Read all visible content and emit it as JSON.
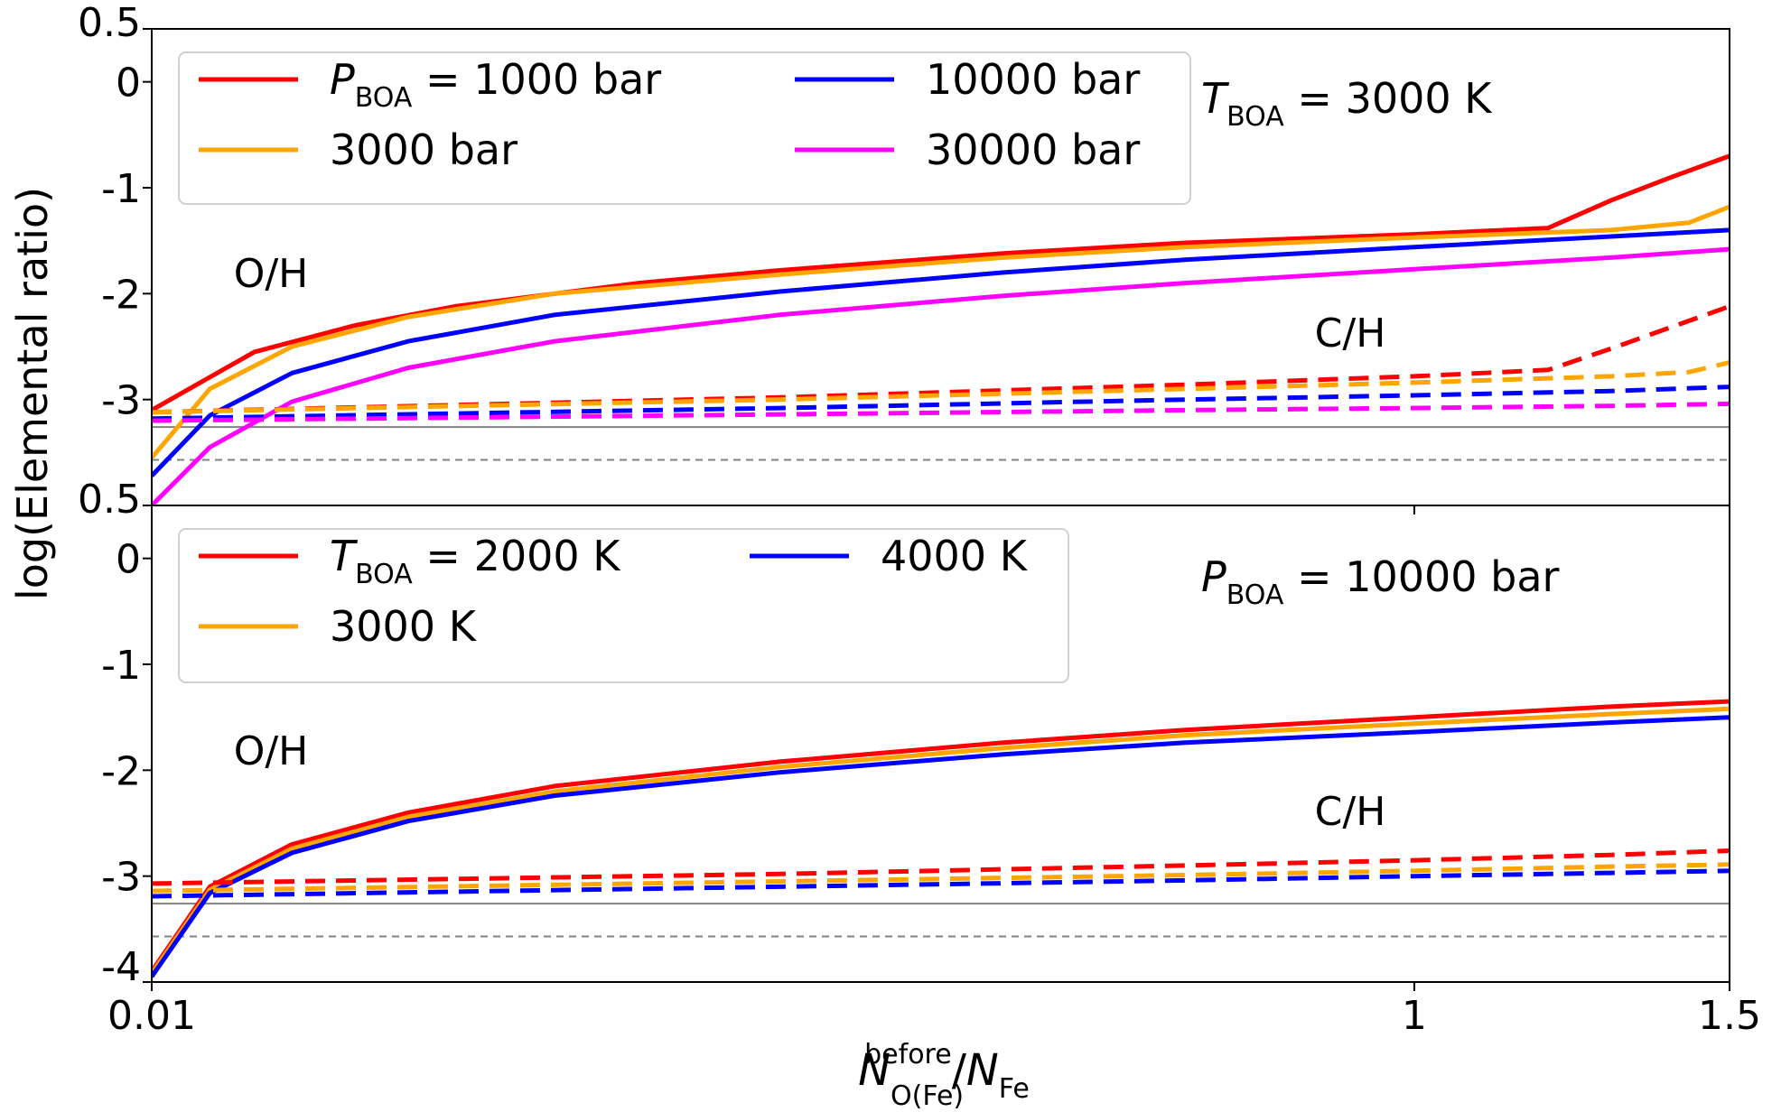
{
  "chart_data": [
    {
      "type": "line",
      "panel": "top",
      "title": "",
      "xlabel": "",
      "ylabel": "log(Elemental ratio)",
      "xscale": "sqrt",
      "xlim": [
        0.01,
        1.5
      ],
      "ylim": [
        -4,
        0.5
      ],
      "xticks": [
        {
          "v": 0.01,
          "label": "0.01"
        },
        {
          "v": 1,
          "label": "1"
        },
        {
          "v": 1.5,
          "label": "1.5"
        }
      ],
      "yticks": [
        {
          "v": 0.5,
          "label": "0.5"
        },
        {
          "v": 0,
          "label": "0"
        },
        {
          "v": -1,
          "label": "-1"
        },
        {
          "v": -2,
          "label": "-2"
        },
        {
          "v": -3,
          "label": "-3"
        }
      ],
      "condition": {
        "italic": "T",
        "sub": "BOA",
        "rest": " = 3000 K"
      },
      "label_OH": "O/H",
      "label_CH": "C/H",
      "reference_lines": {
        "solid": -3.26,
        "dashed": -3.57
      },
      "legend": [
        {
          "italic": "P",
          "sub": "BOA",
          "rest": " = 1000 bar",
          "color": "#ff0000"
        },
        {
          "italic": "",
          "sub": "",
          "rest": "3000 bar",
          "color": "#ffa500"
        },
        {
          "italic": "",
          "sub": "",
          "rest": "10000 bar",
          "color": "#0000ff"
        },
        {
          "italic": "",
          "sub": "",
          "rest": "30000 bar",
          "color": "#ff00ff"
        }
      ],
      "series": [
        {
          "name": "P_BOA = 1000 bar O/H",
          "color": "#ff0000",
          "dash": false,
          "x": [
            0.01,
            0.03,
            0.06,
            0.1,
            0.2,
            0.3,
            0.5,
            0.7,
            1.0,
            1.2,
            1.3,
            1.4,
            1.5
          ],
          "y": [
            -3.1,
            -2.55,
            -2.3,
            -2.12,
            -1.9,
            -1.78,
            -1.62,
            -1.52,
            -1.44,
            -1.38,
            -1.12,
            -0.9,
            -0.7
          ]
        },
        {
          "name": "3000 bar O/H",
          "color": "#ffa500",
          "dash": false,
          "x": [
            0.01,
            0.02,
            0.04,
            0.08,
            0.15,
            0.3,
            0.5,
            0.7,
            1.0,
            1.3,
            1.43,
            1.5
          ],
          "y": [
            -3.55,
            -2.9,
            -2.5,
            -2.22,
            -2.0,
            -1.82,
            -1.66,
            -1.56,
            -1.47,
            -1.4,
            -1.33,
            -1.18
          ]
        },
        {
          "name": "10000 bar O/H",
          "color": "#0000ff",
          "dash": false,
          "x": [
            0.01,
            0.02,
            0.04,
            0.08,
            0.15,
            0.3,
            0.5,
            0.7,
            1.0,
            1.3,
            1.5
          ],
          "y": [
            -3.72,
            -3.15,
            -2.75,
            -2.45,
            -2.2,
            -1.98,
            -1.8,
            -1.68,
            -1.56,
            -1.46,
            -1.4
          ]
        },
        {
          "name": "30000 bar O/H",
          "color": "#ff00ff",
          "dash": false,
          "x": [
            0.01,
            0.02,
            0.04,
            0.08,
            0.15,
            0.3,
            0.5,
            0.7,
            1.0,
            1.3,
            1.5
          ],
          "y": [
            -4.0,
            -3.45,
            -3.02,
            -2.7,
            -2.45,
            -2.2,
            -2.02,
            -1.9,
            -1.77,
            -1.66,
            -1.58
          ]
        },
        {
          "name": "P_BOA = 1000 bar C/H",
          "color": "#ff0000",
          "dash": true,
          "x": [
            0.01,
            0.3,
            0.7,
            1.0,
            1.2,
            1.3,
            1.5
          ],
          "y": [
            -3.12,
            -2.98,
            -2.86,
            -2.78,
            -2.72,
            -2.52,
            -2.12
          ]
        },
        {
          "name": "3000 bar C/H",
          "color": "#ffa500",
          "dash": true,
          "x": [
            0.01,
            0.3,
            0.7,
            1.0,
            1.3,
            1.43,
            1.5
          ],
          "y": [
            -3.12,
            -3.0,
            -2.9,
            -2.84,
            -2.78,
            -2.74,
            -2.65
          ]
        },
        {
          "name": "10000 bar C/H",
          "color": "#0000ff",
          "dash": true,
          "x": [
            0.01,
            0.3,
            0.7,
            1.0,
            1.3,
            1.5
          ],
          "y": [
            -3.18,
            -3.08,
            -3.0,
            -2.96,
            -2.92,
            -2.88
          ]
        },
        {
          "name": "30000 bar C/H",
          "color": "#ff00ff",
          "dash": true,
          "x": [
            0.01,
            0.3,
            0.7,
            1.0,
            1.3,
            1.5
          ],
          "y": [
            -3.2,
            -3.14,
            -3.1,
            -3.08,
            -3.06,
            -3.04
          ]
        }
      ]
    },
    {
      "type": "line",
      "panel": "bottom",
      "title": "",
      "xlabel": {
        "italic": "N",
        "sup": "before",
        "sub": "O(Fe)",
        "slash": "/",
        "italic2": "N",
        "sub2": "Fe"
      },
      "ylabel": "log(Elemental ratio)",
      "xscale": "sqrt",
      "xlim": [
        0.01,
        1.5
      ],
      "ylim": [
        -4,
        0.5
      ],
      "xticks": [
        {
          "v": 0.01,
          "label": "0.01"
        },
        {
          "v": 1,
          "label": "1"
        },
        {
          "v": 1.5,
          "label": "1.5"
        }
      ],
      "yticks": [
        {
          "v": 0.5,
          "label": "0.5"
        },
        {
          "v": 0,
          "label": "0"
        },
        {
          "v": -1,
          "label": "-1"
        },
        {
          "v": -2,
          "label": "-2"
        },
        {
          "v": -3,
          "label": "-3"
        },
        {
          "v": -4,
          "label": "-4"
        }
      ],
      "condition": {
        "italic": "P",
        "sub": "BOA",
        "rest": " = 10000 bar"
      },
      "label_OH": "O/H",
      "label_CH": "C/H",
      "reference_lines": {
        "solid": -3.26,
        "dashed": -3.57
      },
      "legend": [
        {
          "italic": "T",
          "sub": "BOA",
          "rest": " = 2000 K",
          "color": "#ff0000"
        },
        {
          "italic": "",
          "sub": "",
          "rest": "3000 K",
          "color": "#ffa500"
        },
        {
          "italic": "",
          "sub": "",
          "rest": "4000 K",
          "color": "#0000ff"
        }
      ],
      "series": [
        {
          "name": "T_BOA = 2000 K O/H",
          "color": "#ff0000",
          "dash": false,
          "x": [
            0.01,
            0.02,
            0.04,
            0.08,
            0.15,
            0.3,
            0.5,
            0.7,
            1.0,
            1.3,
            1.5
          ],
          "y": [
            -3.9,
            -3.1,
            -2.7,
            -2.4,
            -2.15,
            -1.92,
            -1.74,
            -1.62,
            -1.5,
            -1.4,
            -1.35
          ]
        },
        {
          "name": "3000 K O/H",
          "color": "#ffa500",
          "dash": false,
          "x": [
            0.01,
            0.02,
            0.04,
            0.08,
            0.15,
            0.3,
            0.5,
            0.7,
            1.0,
            1.3,
            1.5
          ],
          "y": [
            -3.92,
            -3.13,
            -2.74,
            -2.44,
            -2.2,
            -1.97,
            -1.79,
            -1.67,
            -1.56,
            -1.47,
            -1.42
          ]
        },
        {
          "name": "4000 K O/H",
          "color": "#0000ff",
          "dash": false,
          "x": [
            0.01,
            0.02,
            0.04,
            0.08,
            0.15,
            0.3,
            0.5,
            0.7,
            1.0,
            1.3,
            1.5
          ],
          "y": [
            -3.95,
            -3.16,
            -2.78,
            -2.48,
            -2.24,
            -2.02,
            -1.85,
            -1.74,
            -1.64,
            -1.55,
            -1.5
          ]
        },
        {
          "name": "T_BOA = 2000 K C/H",
          "color": "#ff0000",
          "dash": true,
          "x": [
            0.01,
            0.3,
            0.7,
            1.0,
            1.3,
            1.5
          ],
          "y": [
            -3.07,
            -2.98,
            -2.9,
            -2.85,
            -2.8,
            -2.76
          ]
        },
        {
          "name": "3000 K C/H",
          "color": "#ffa500",
          "dash": true,
          "x": [
            0.01,
            0.3,
            0.7,
            1.0,
            1.3,
            1.5
          ],
          "y": [
            -3.14,
            -3.05,
            -2.99,
            -2.95,
            -2.91,
            -2.89
          ]
        },
        {
          "name": "4000 K C/H",
          "color": "#0000ff",
          "dash": true,
          "x": [
            0.01,
            0.3,
            0.7,
            1.0,
            1.3,
            1.5
          ],
          "y": [
            -3.19,
            -3.1,
            -3.04,
            -3.0,
            -2.97,
            -2.95
          ]
        }
      ]
    }
  ]
}
